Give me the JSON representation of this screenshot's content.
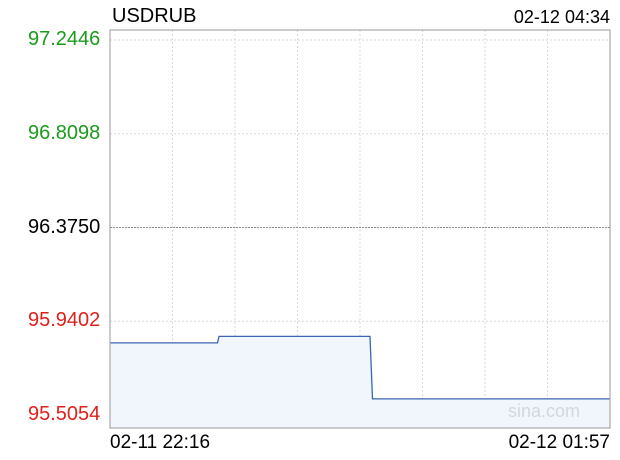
{
  "header": {
    "symbol": "USDRUB",
    "timestamp": "02-12 04:34"
  },
  "watermark": "sina.com",
  "colors": {
    "up": "#1a9c1a",
    "neutral": "#000000",
    "down": "#e0201b",
    "line": "#3c64b4",
    "fill": "#f1f6fd",
    "grid": "#d9d9d9",
    "border": "#999999"
  },
  "chart_data": {
    "type": "line",
    "title": "USDRUB",
    "xlabel": "",
    "ylabel": "",
    "x_tick_labels": [
      "02-11 22:16",
      "02-12 01:57"
    ],
    "y_tick_labels": [
      "97.2446",
      "96.8098",
      "96.3750",
      "95.9402",
      "95.5054"
    ],
    "y_ticks": [
      97.2446,
      96.8098,
      96.375,
      95.9402,
      95.5054
    ],
    "y_tick_colors": [
      "up",
      "up",
      "neutral",
      "down",
      "down"
    ],
    "ylim": [
      95.5054,
      97.2446
    ],
    "reference_value": 96.375,
    "grid": true,
    "series": [
      {
        "x": [
          0.0,
          0.215,
          0.218,
          0.52,
          0.525,
          1.0
        ],
        "y": [
          95.84,
          95.84,
          95.87,
          95.87,
          95.58,
          95.58
        ]
      }
    ]
  }
}
